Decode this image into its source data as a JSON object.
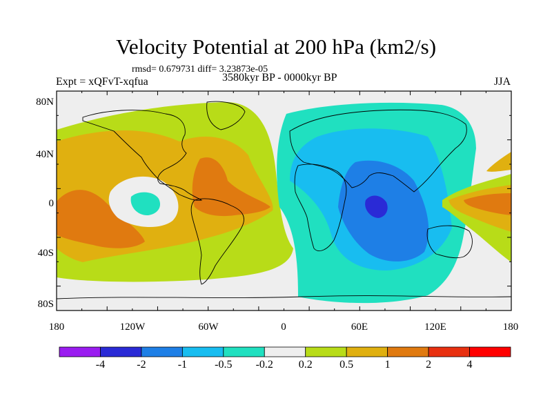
{
  "title": "Velocity Potential at 200 hPa (km2/s)",
  "stats": "rmsd= 0.679731 diff= 3.23873e-05",
  "experiment": "Expt = xQFvT-xqfua",
  "period": "3580kyr BP - 0000kyr BP",
  "season": "JJA",
  "lat_labels": [
    "80N",
    "40N",
    "0",
    "40S",
    "80S"
  ],
  "lon_labels": [
    "180",
    "120W",
    "60W",
    "0",
    "60E",
    "120E",
    "180"
  ],
  "colorbar": {
    "labels": [
      "-4",
      "-2",
      "-1",
      "-0.5",
      "-0.2",
      "0.2",
      "0.5",
      "1",
      "2",
      "4"
    ],
    "colors": [
      "#9a1cf0",
      "#2a2ad6",
      "#1e7fe6",
      "#18bdf0",
      "#20e0c0",
      "#eeeeee",
      "#b8dc18",
      "#e0b010",
      "#e07a10",
      "#e83010",
      "#ff0000"
    ]
  },
  "map_colors": {
    "background": "#eeeeee",
    "land_outline": "#000000"
  }
}
